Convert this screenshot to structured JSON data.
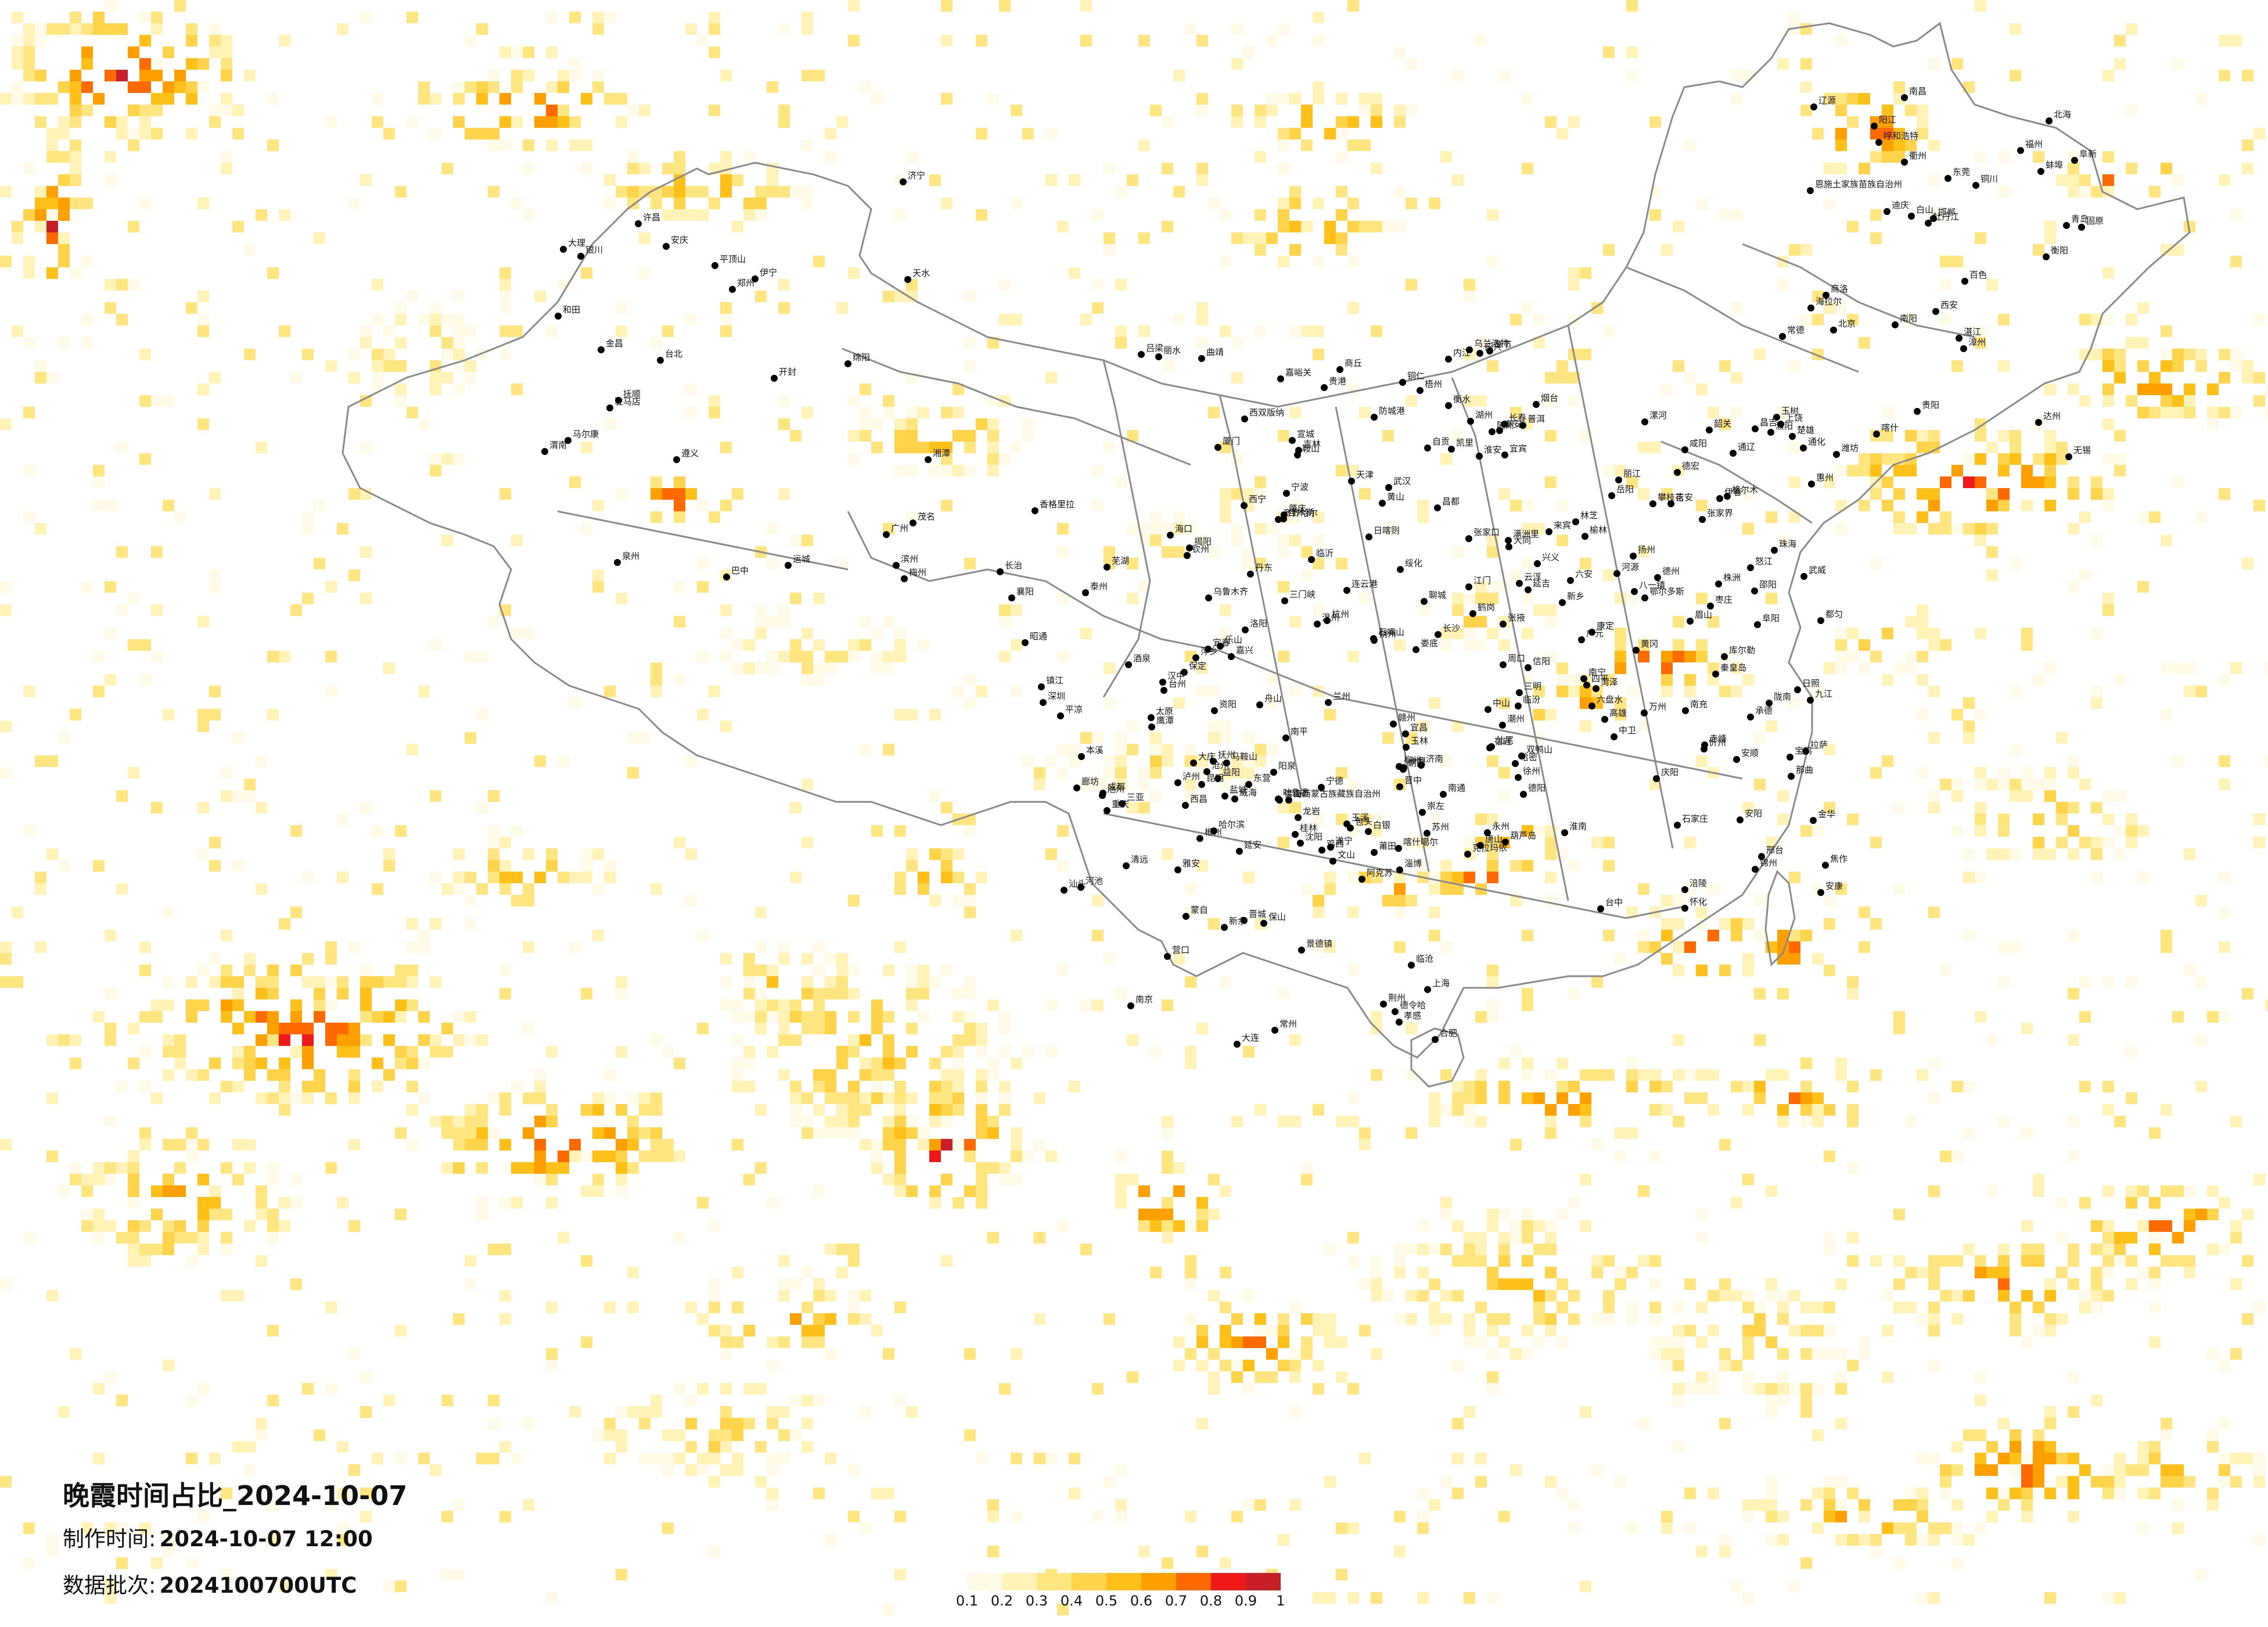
{
  "title": "晚霞时间占比_2024-10-07",
  "production_time": {
    "label": "制作时间:",
    "value": "2024-10-07 12:00"
  },
  "data_batch": {
    "label": "数据批次:",
    "value": "2024100700UTC"
  },
  "legend": {
    "ticks": [
      "0.1",
      "0.2",
      "0.3",
      "0.4",
      "0.5",
      "0.6",
      "0.7",
      "0.8",
      "0.9",
      "1"
    ],
    "colors": [
      "#fffbe8",
      "#fff3b8",
      "#ffe680",
      "#ffd44a",
      "#ffc01a",
      "#ff9f00",
      "#ff6a00",
      "#f01818",
      "#c8202a"
    ]
  },
  "colors": {
    "border": "#8a8a8a",
    "city_dot": "#000000",
    "background": "#ffffff"
  },
  "cities": [
    "伊宁",
    "克拉玛依",
    "昌吉",
    "乌鲁木齐",
    "吐鲁番",
    "哈密",
    "库尔勒",
    "阿克苏",
    "喀什",
    "和田",
    "喀什噶尔",
    "格尔木",
    "德令哈",
    "海西蒙古族藏族自治州",
    "酒泉",
    "嘉峪关",
    "张掖",
    "武威",
    "金昌",
    "兰州",
    "西宁",
    "银川",
    "石嘴山",
    "中卫",
    "白银",
    "固原",
    "天水",
    "陇南",
    "平凉",
    "庆阳",
    "拉萨",
    "日喀则",
    "林芝",
    "八一镇",
    "那曲",
    "玉树",
    "昌都",
    "乌兰浩特",
    "呼和浩特",
    "包头",
    "鄂尔多斯",
    "赤峰",
    "通辽",
    "满洲里",
    "海拉尔",
    "齐齐哈尔",
    "大庆",
    "绥化",
    "哈尔滨",
    "伊春",
    "佳木斯",
    "鹤岗",
    "双鸭山",
    "牡丹江",
    "鸡西",
    "长春",
    "吉林",
    "延吉",
    "通化",
    "白山",
    "四平",
    "辽源",
    "沈阳",
    "抚顺",
    "本溪",
    "丹东",
    "鞍山",
    "营口",
    "大连",
    "锦州",
    "阜新",
    "朝阳",
    "葫芦岛",
    "秦皇岛",
    "唐山",
    "北京",
    "天津",
    "廊坊",
    "保定",
    "石家庄",
    "邢台",
    "邯郸",
    "衡水",
    "沧州",
    "德州",
    "张家口",
    "承德",
    "大同",
    "朔州",
    "忻州",
    "太原",
    "阳泉",
    "晋中",
    "吕梁",
    "临汾",
    "长治",
    "晋城",
    "运城",
    "济南",
    "青岛",
    "烟台",
    "威海",
    "潍坊",
    "淄博",
    "泰安",
    "临沂",
    "日照",
    "枣庄",
    "济宁",
    "菏泽",
    "聊城",
    "滨州",
    "东营",
    "郑州",
    "开封",
    "洛阳",
    "新乡",
    "安阳",
    "濮阳",
    "焦作",
    "三门峡",
    "南阳",
    "信阳",
    "驻马店",
    "周口",
    "商丘",
    "许昌",
    "平顶山",
    "漯河",
    "西安",
    "宝鸡",
    "咸阳",
    "铜川",
    "延安",
    "榆林",
    "渭南",
    "汉中",
    "安康",
    "商洛",
    "武汉",
    "襄阳",
    "十堰",
    "宜昌",
    "荆州",
    "黄冈",
    "孝感",
    "随州",
    "恩施土家族苗族自治州",
    "长沙",
    "岳阳",
    "常德",
    "张家界",
    "怀化",
    "邵阳",
    "衡阳",
    "株洲",
    "湘潭",
    "郴州",
    "永州",
    "娄底",
    "益阳",
    "南昌",
    "九江",
    "景德镇",
    "上饶",
    "鹰潭",
    "抚州",
    "吉安",
    "赣州",
    "宜春",
    "萍乡",
    "新余",
    "合肥",
    "芜湖",
    "蚌埠",
    "淮南",
    "阜阳",
    "六安",
    "安庆",
    "黄山",
    "池州",
    "宣城",
    "马鞍山",
    "南京",
    "苏州",
    "无锡",
    "常州",
    "镇江",
    "扬州",
    "泰州",
    "南通",
    "盐城",
    "淮安",
    "宿迁",
    "徐州",
    "连云港",
    "上海",
    "杭州",
    "宁波",
    "温州",
    "绍兴",
    "湖州",
    "嘉兴",
    "金华",
    "衢州",
    "台州",
    "丽水",
    "舟山",
    "福州",
    "厦门",
    "泉州",
    "漳州",
    "莆田",
    "三明",
    "南平",
    "龙岩",
    "宁德",
    "台北",
    "台中",
    "高雄",
    "广州",
    "深圳",
    "珠海",
    "汕头",
    "韶关",
    "河源",
    "梅州",
    "惠州",
    "汕尾",
    "东莞",
    "中山",
    "江门",
    "佛山",
    "阳江",
    "湛江",
    "茂名",
    "肇庆",
    "清远",
    "潮州",
    "揭阳",
    "云浮",
    "南宁",
    "柳州",
    "桂林",
    "梧州",
    "北海",
    "防城港",
    "钦州",
    "贵港",
    "玉林",
    "百色",
    "河池",
    "来宾",
    "崇左",
    "海口",
    "三亚",
    "成都",
    "绵阳",
    "德阳",
    "广元",
    "南充",
    "遂宁",
    "内江",
    "乐山",
    "宜宾",
    "泸州",
    "达州",
    "雅安",
    "巴中",
    "资阳",
    "眉山",
    "自贡",
    "攀枝花",
    "西昌",
    "康定",
    "马尔康",
    "重庆",
    "涪陵",
    "万州",
    "贵阳",
    "遵义",
    "六盘水",
    "安顺",
    "毕节",
    "铜仁",
    "都匀",
    "凯里",
    "兴义",
    "昆明",
    "曲靖",
    "玉溪",
    "保山",
    "昭通",
    "丽江",
    "普洱",
    "临沧",
    "楚雄",
    "大理",
    "德宏",
    "蒙自",
    "文山",
    "西双版纳",
    "怒江",
    "迪庆",
    "香格里拉"
  ]
}
